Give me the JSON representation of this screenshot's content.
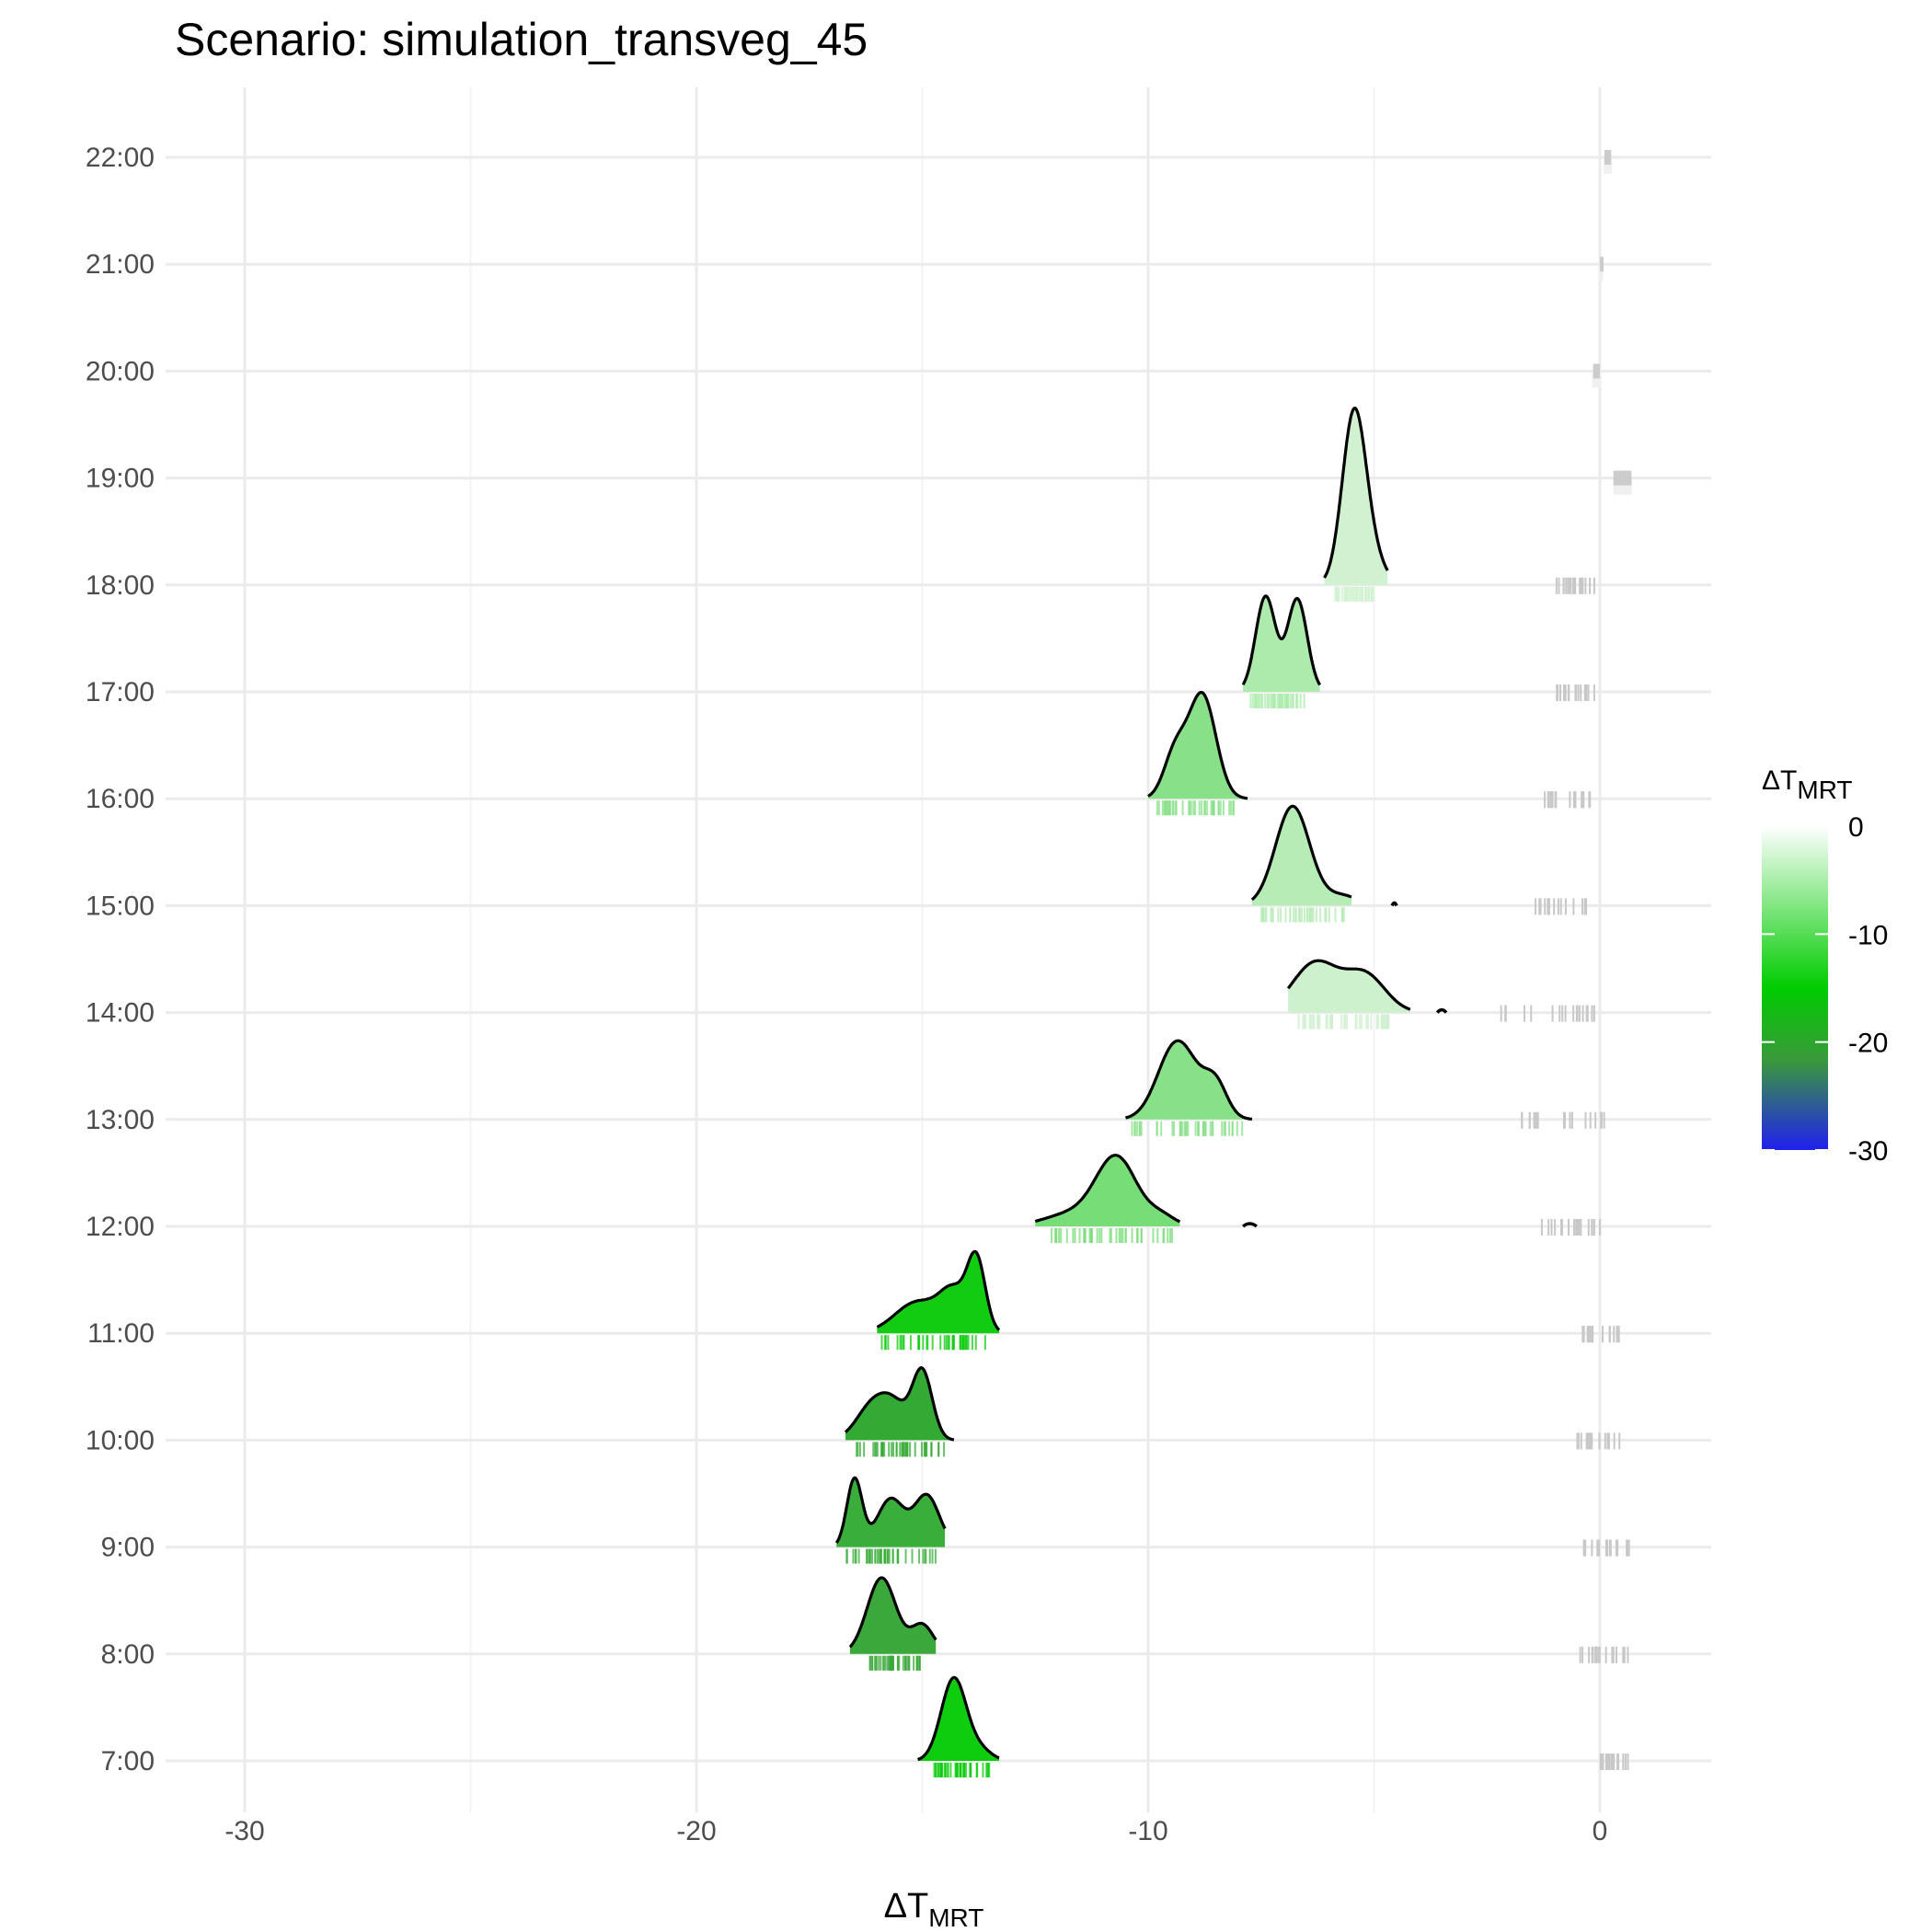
{
  "title": "Scenario: simulation_transveg_45",
  "chart_data": {
    "type": "ridgeline",
    "title": "Scenario: simulation_transveg_45",
    "xlabel": "ΔT",
    "xlabel_sub": "MRT",
    "ylabel": "",
    "xlim": [
      -30,
      0
    ],
    "x_ticks": [
      "-30",
      "-20",
      "-10",
      "0"
    ],
    "x_tick_values": [
      -30,
      -20,
      -10,
      0
    ],
    "categories": [
      "7:00",
      "8:00",
      "9:00",
      "10:00",
      "11:00",
      "12:00",
      "13:00",
      "14:00",
      "15:00",
      "16:00",
      "17:00",
      "18:00",
      "19:00",
      "20:00",
      "21:00",
      "22:00"
    ],
    "grid": true,
    "legend": {
      "title": "ΔT",
      "title_sub": "MRT",
      "position": "right",
      "breaks": [
        "0",
        "-10",
        "-20",
        "-30"
      ],
      "break_values": [
        0,
        -10,
        -20,
        -30
      ],
      "colors": [
        "#ffffff",
        "#00cc00",
        "#2020ee"
      ]
    },
    "series": [
      {
        "time": "7:00",
        "fill": "#0ecc0e",
        "peaks": [
          {
            "mu": -14.3,
            "sd": 0.28,
            "h": 1.0
          },
          {
            "mu": -13.7,
            "sd": 0.25,
            "h": 0.12
          }
        ],
        "range": [
          -15.1,
          -13.3
        ],
        "rug_range": [
          -14.8,
          -13.5
        ]
      },
      {
        "time": "8:00",
        "fill": "#3aa83a",
        "peaks": [
          {
            "mu": -15.9,
            "sd": 0.32,
            "h": 0.92
          },
          {
            "mu": -15.0,
            "sd": 0.25,
            "h": 0.35
          }
        ],
        "range": [
          -16.6,
          -14.7
        ],
        "rug_range": [
          -16.3,
          -15.0
        ]
      },
      {
        "time": "9:00",
        "fill": "#3aae3a",
        "peaks": [
          {
            "mu": -16.5,
            "sd": 0.17,
            "h": 0.82
          },
          {
            "mu": -15.7,
            "sd": 0.3,
            "h": 0.58
          },
          {
            "mu": -14.9,
            "sd": 0.28,
            "h": 0.62
          }
        ],
        "range": [
          -16.9,
          -14.5
        ],
        "rug_range": [
          -16.7,
          -14.7
        ]
      },
      {
        "time": "10:00",
        "fill": "#33aa33",
        "peaks": [
          {
            "mu": -16.1,
            "sd": 0.35,
            "h": 0.42
          },
          {
            "mu": -15.0,
            "sd": 0.22,
            "h": 0.82
          },
          {
            "mu": -15.6,
            "sd": 0.3,
            "h": 0.35
          }
        ],
        "range": [
          -16.7,
          -14.3
        ],
        "rug_range": [
          -16.5,
          -14.4
        ]
      },
      {
        "time": "11:00",
        "fill": "#11cc11",
        "peaks": [
          {
            "mu": -13.8,
            "sd": 0.2,
            "h": 0.85
          },
          {
            "mu": -14.3,
            "sd": 0.3,
            "h": 0.45
          },
          {
            "mu": -15.1,
            "sd": 0.5,
            "h": 0.38
          }
        ],
        "range": [
          -16.0,
          -13.3
        ],
        "rug_range": [
          -15.9,
          -13.6
        ]
      },
      {
        "time": "12:00",
        "fill": "#77dd77",
        "peaks": [
          {
            "mu": -10.7,
            "sd": 0.45,
            "h": 0.82
          },
          {
            "mu": -11.7,
            "sd": 0.6,
            "h": 0.15
          },
          {
            "mu": -9.7,
            "sd": 0.3,
            "h": 0.12
          }
        ],
        "range": [
          -12.5,
          -9.3
        ],
        "rug_range": [
          -12.3,
          -9.4
        ],
        "extra": [
          {
            "x1": -7.9,
            "x2": -7.6
          }
        ]
      },
      {
        "time": "13:00",
        "fill": "#88e088",
        "peaks": [
          {
            "mu": -9.4,
            "sd": 0.4,
            "h": 0.85
          },
          {
            "mu": -8.5,
            "sd": 0.25,
            "h": 0.35
          },
          {
            "mu": -8.9,
            "sd": 0.4,
            "h": 0.2
          }
        ],
        "range": [
          -10.5,
          -7.7
        ],
        "rug_range": [
          -10.4,
          -7.9
        ]
      },
      {
        "time": "14:00",
        "fill": "#cdf0cd",
        "peaks": [
          {
            "mu": -6.3,
            "sd": 0.5,
            "h": 0.6
          },
          {
            "mu": -5.2,
            "sd": 0.45,
            "h": 0.45
          }
        ],
        "range": [
          -6.9,
          -4.2
        ],
        "rug_range": [
          -6.7,
          -4.6
        ],
        "extra": [
          {
            "x1": -3.6,
            "x2": -3.4
          }
        ]
      },
      {
        "time": "15:00",
        "fill": "#b6ecb6",
        "peaks": [
          {
            "mu": -6.8,
            "sd": 0.38,
            "h": 1.2
          },
          {
            "mu": -5.7,
            "sd": 0.35,
            "h": 0.12
          }
        ],
        "range": [
          -7.7,
          -5.5
        ],
        "rug_range": [
          -7.5,
          -5.6
        ],
        "extra": [
          {
            "x1": -4.6,
            "x2": -4.5
          }
        ]
      },
      {
        "time": "16:00",
        "fill": "#88e088",
        "peaks": [
          {
            "mu": -8.8,
            "sd": 0.3,
            "h": 1.25
          },
          {
            "mu": -9.4,
            "sd": 0.25,
            "h": 0.55
          }
        ],
        "range": [
          -10.0,
          -7.8
        ],
        "rug_range": [
          -9.8,
          -8.0
        ]
      },
      {
        "time": "17:00",
        "fill": "#acebac",
        "peaks": [
          {
            "mu": -7.4,
            "sd": 0.22,
            "h": 1.15
          },
          {
            "mu": -6.7,
            "sd": 0.22,
            "h": 1.12
          }
        ],
        "range": [
          -7.9,
          -6.2
        ],
        "rug_range": [
          -7.8,
          -6.5
        ]
      },
      {
        "time": "18:00",
        "fill": "#d0f2d0",
        "peaks": [
          {
            "mu": -5.45,
            "sd": 0.26,
            "h": 1.95
          },
          {
            "mu": -5.1,
            "sd": 0.3,
            "h": 0.35
          }
        ],
        "range": [
          -6.1,
          -4.7
        ],
        "rug_range": [
          -5.9,
          -5.0
        ]
      },
      {
        "time": "19:00",
        "fill": "#f0f0f0",
        "peaks": [],
        "range": [
          0.3,
          0.7
        ],
        "rug_range": [
          0.3,
          0.7
        ]
      },
      {
        "time": "20:00",
        "fill": "#f0f0f0",
        "peaks": [],
        "range": [
          -0.15,
          0.0
        ],
        "rug_range": [
          -0.15,
          0.0
        ]
      },
      {
        "time": "21:00",
        "fill": "#f0f0f0",
        "peaks": [],
        "range": [
          0.0,
          0.05
        ],
        "rug_range": [
          0.0,
          0.05
        ]
      },
      {
        "time": "22:00",
        "fill": "#f0f0f0",
        "peaks": [],
        "range": [
          0.1,
          0.25
        ],
        "rug_range": [
          0.1,
          0.25
        ]
      }
    ],
    "gray_rugs": [
      {
        "time": "7:00",
        "range": [
          0.0,
          0.7
        ]
      },
      {
        "time": "8:00",
        "range": [
          -0.8,
          0.7
        ]
      },
      {
        "time": "9:00",
        "range": [
          -0.5,
          0.7
        ]
      },
      {
        "time": "10:00",
        "range": [
          -0.5,
          0.5
        ]
      },
      {
        "time": "11:00",
        "range": [
          -0.4,
          0.5
        ]
      },
      {
        "time": "12:00",
        "range": [
          -1.4,
          0.2
        ]
      },
      {
        "time": "13:00",
        "range": [
          -1.9,
          0.1
        ]
      },
      {
        "time": "14:00",
        "range": [
          -2.2,
          0.0
        ]
      },
      {
        "time": "15:00",
        "range": [
          -1.5,
          -0.3
        ]
      },
      {
        "time": "16:00",
        "range": [
          -1.3,
          -0.2
        ]
      },
      {
        "time": "17:00",
        "range": [
          -1.1,
          -0.1
        ]
      },
      {
        "time": "18:00",
        "range": [
          -1.0,
          -0.1
        ]
      }
    ]
  }
}
